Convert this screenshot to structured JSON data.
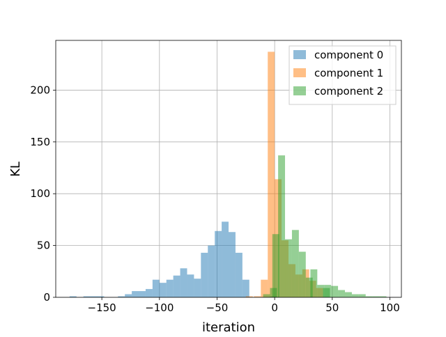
{
  "chart_data": {
    "type": "histogram",
    "xlabel": "iteration",
    "ylabel": "KL",
    "xlim": [
      -190,
      110
    ],
    "ylim": [
      0,
      248
    ],
    "xticks": [
      -150,
      -100,
      -50,
      0,
      50,
      100
    ],
    "xtick_labels": [
      "−150",
      "−100",
      "−50",
      "0",
      "50",
      "100"
    ],
    "yticks": [
      0,
      50,
      100,
      150,
      200
    ],
    "ytick_labels": [
      "0",
      "50",
      "100",
      "150",
      "200"
    ],
    "grid": true,
    "legend_position": "top-right",
    "series": [
      {
        "name": "component 0",
        "color": "#1f77b4",
        "bins": [
          [
            -178,
            1
          ],
          [
            -172,
            0
          ],
          [
            -166,
            1
          ],
          [
            -160,
            1
          ],
          [
            -154,
            1
          ],
          [
            -148,
            0
          ],
          [
            -142,
            0
          ],
          [
            -136,
            1
          ],
          [
            -130,
            3
          ],
          [
            -124,
            6
          ],
          [
            -118,
            6
          ],
          [
            -112,
            8
          ],
          [
            -106,
            17
          ],
          [
            -100,
            14
          ],
          [
            -94,
            17
          ],
          [
            -88,
            21
          ],
          [
            -82,
            28
          ],
          [
            -76,
            22
          ],
          [
            -70,
            18
          ],
          [
            -64,
            43
          ],
          [
            -58,
            50
          ],
          [
            -52,
            64
          ],
          [
            -46,
            73
          ],
          [
            -40,
            63
          ],
          [
            -34,
            43
          ],
          [
            -28,
            17
          ],
          [
            -22,
            0
          ],
          [
            -16,
            0
          ],
          [
            -10,
            0
          ],
          [
            -4,
            1
          ]
        ],
        "bin_width": 6
      },
      {
        "name": "component 1",
        "color": "#ff7f0e",
        "bins": [
          [
            -25,
            1
          ],
          [
            -18,
            1
          ],
          [
            -12,
            17
          ],
          [
            -6,
            237
          ],
          [
            0,
            114
          ],
          [
            6,
            55
          ],
          [
            12,
            32
          ],
          [
            18,
            22
          ],
          [
            24,
            27
          ],
          [
            30,
            16
          ],
          [
            36,
            9
          ],
          [
            42,
            0
          ]
        ],
        "bin_width": 6
      },
      {
        "name": "component 2",
        "color": "#2ca02c",
        "bins": [
          [
            -10,
            3
          ],
          [
            -4,
            9
          ],
          [
            -2,
            61
          ],
          [
            3,
            137
          ],
          [
            9,
            56
          ],
          [
            15,
            65
          ],
          [
            21,
            44
          ],
          [
            27,
            19
          ],
          [
            31,
            27
          ],
          [
            37,
            12
          ],
          [
            42,
            9
          ],
          [
            43,
            12
          ],
          [
            49,
            11
          ],
          [
            55,
            7
          ],
          [
            61,
            5
          ],
          [
            67,
            3
          ],
          [
            73,
            3
          ],
          [
            79,
            1
          ],
          [
            85,
            1
          ],
          [
            91,
            1
          ],
          [
            97,
            0
          ]
        ],
        "bin_width": 6
      }
    ]
  }
}
